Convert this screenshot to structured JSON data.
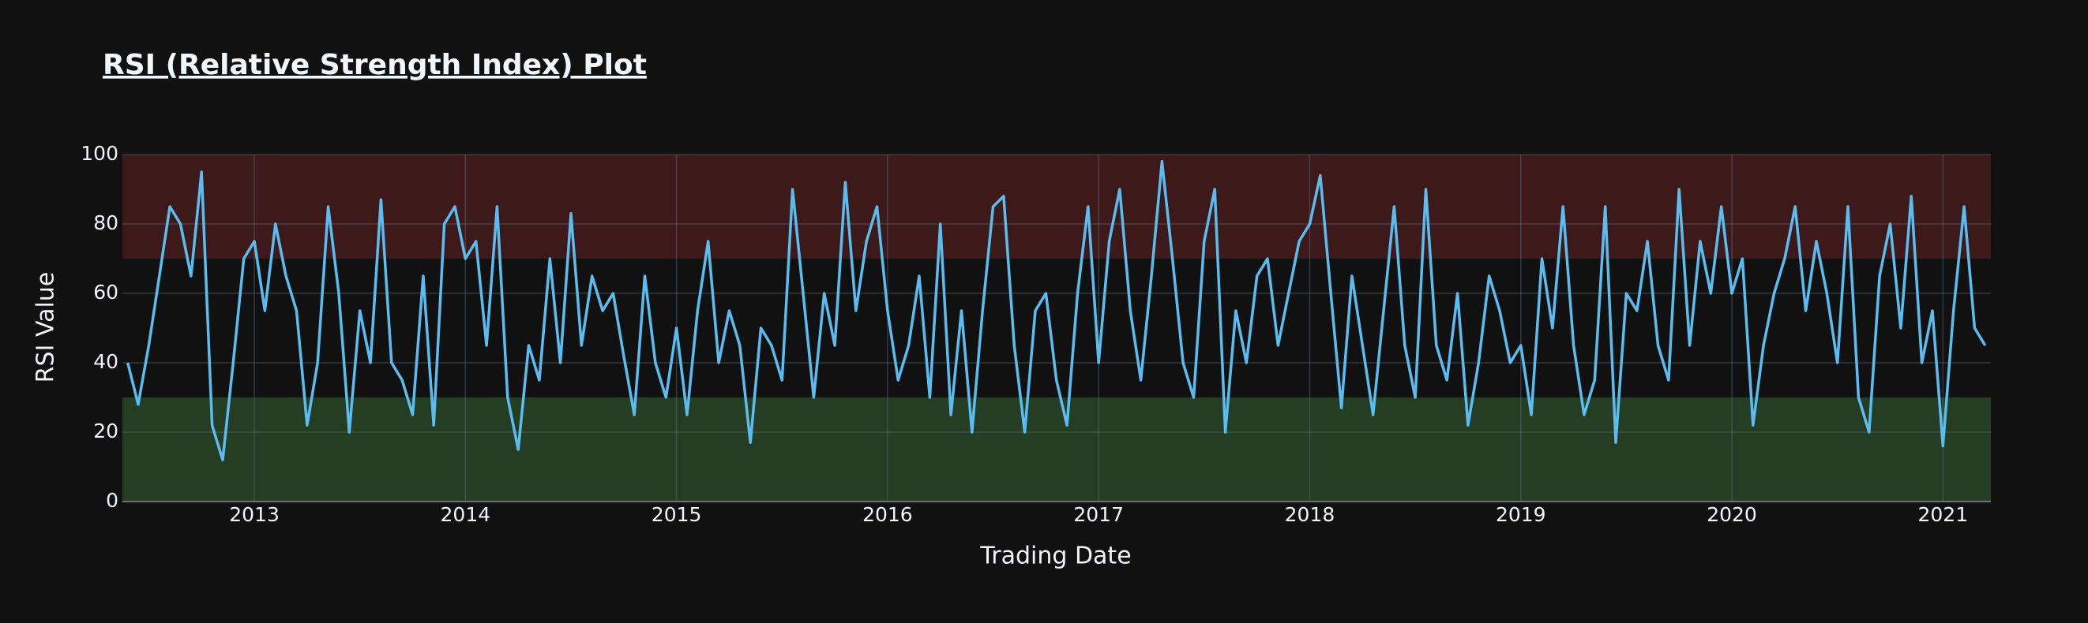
{
  "chart_data": {
    "type": "line",
    "title": "RSI (Relative Strength Index) Plot",
    "x_label": "Trading Date",
    "y_label": "RSI Value",
    "color": "#5bbcf0",
    "background": "#111111",
    "grid": true,
    "xlim": [
      2012.375,
      2021.227
    ],
    "xticks": [
      2013,
      2014,
      2015,
      2016,
      2017,
      2018,
      2019,
      2020,
      2021
    ],
    "ylim": [
      0,
      100
    ],
    "yticks": [
      0,
      20,
      40,
      60,
      80,
      100
    ],
    "bands": [
      {
        "range": [
          70,
          100
        ],
        "color": "#3d1a19"
      },
      {
        "range": [
          0,
          30
        ],
        "color": "#253d22"
      }
    ],
    "x": [
      2012.4,
      2012.45,
      2012.5,
      2012.55,
      2012.6,
      2012.65,
      2012.7,
      2012.75,
      2012.8,
      2012.85,
      2012.9,
      2012.95,
      2013.0,
      2013.05,
      2013.1,
      2013.15,
      2013.2,
      2013.25,
      2013.3,
      2013.35,
      2013.4,
      2013.45,
      2013.5,
      2013.55,
      2013.6,
      2013.65,
      2013.7,
      2013.75,
      2013.8,
      2013.85,
      2013.9,
      2013.95,
      2014.0,
      2014.05,
      2014.1,
      2014.15,
      2014.2,
      2014.25,
      2014.3,
      2014.35,
      2014.4,
      2014.45,
      2014.5,
      2014.55,
      2014.6,
      2014.65,
      2014.7,
      2014.75,
      2014.8,
      2014.85,
      2014.9,
      2014.95,
      2015.0,
      2015.05,
      2015.1,
      2015.15,
      2015.2,
      2015.25,
      2015.3,
      2015.35,
      2015.4,
      2015.45,
      2015.5,
      2015.55,
      2015.6,
      2015.65,
      2015.7,
      2015.75,
      2015.8,
      2015.85,
      2015.9,
      2015.95,
      2016.0,
      2016.05,
      2016.1,
      2016.15,
      2016.2,
      2016.25,
      2016.3,
      2016.35,
      2016.4,
      2016.45,
      2016.5,
      2016.55,
      2016.6,
      2016.65,
      2016.7,
      2016.75,
      2016.8,
      2016.85,
      2016.9,
      2016.95,
      2017.0,
      2017.05,
      2017.1,
      2017.15,
      2017.2,
      2017.25,
      2017.3,
      2017.35,
      2017.4,
      2017.45,
      2017.5,
      2017.55,
      2017.6,
      2017.65,
      2017.7,
      2017.75,
      2017.8,
      2017.85,
      2017.9,
      2017.95,
      2018.0,
      2018.05,
      2018.1,
      2018.15,
      2018.2,
      2018.25,
      2018.3,
      2018.35,
      2018.4,
      2018.45,
      2018.5,
      2018.55,
      2018.6,
      2018.65,
      2018.7,
      2018.75,
      2018.8,
      2018.85,
      2018.9,
      2018.95,
      2019.0,
      2019.05,
      2019.1,
      2019.15,
      2019.2,
      2019.25,
      2019.3,
      2019.35,
      2019.4,
      2019.45,
      2019.5,
      2019.55,
      2019.6,
      2019.65,
      2019.7,
      2019.75,
      2019.8,
      2019.85,
      2019.9,
      2019.95,
      2020.0,
      2020.05,
      2020.1,
      2020.15,
      2020.2,
      2020.25,
      2020.3,
      2020.35,
      2020.4,
      2020.45,
      2020.5,
      2020.55,
      2020.6,
      2020.65,
      2020.7,
      2020.75,
      2020.8,
      2020.85,
      2020.9,
      2020.95,
      2021.0,
      2021.05,
      2021.1,
      2021.15,
      2021.2
    ],
    "values": [
      40,
      28,
      45,
      65,
      85,
      80,
      65,
      95,
      22,
      12,
      40,
      70,
      75,
      55,
      80,
      65,
      55,
      22,
      40,
      85,
      60,
      20,
      55,
      40,
      87,
      40,
      35,
      25,
      65,
      22,
      80,
      85,
      70,
      75,
      45,
      85,
      30,
      15,
      45,
      35,
      70,
      40,
      83,
      45,
      65,
      55,
      60,
      42,
      25,
      65,
      40,
      30,
      50,
      25,
      55,
      75,
      40,
      55,
      45,
      17,
      50,
      45,
      35,
      90,
      60,
      30,
      60,
      45,
      92,
      55,
      75,
      85,
      55,
      35,
      45,
      65,
      30,
      80,
      25,
      55,
      20,
      55,
      85,
      88,
      45,
      20,
      55,
      60,
      35,
      22,
      60,
      85,
      40,
      75,
      90,
      55,
      35,
      65,
      98,
      70,
      40,
      30,
      75,
      90,
      20,
      55,
      40,
      65,
      70,
      45,
      60,
      75,
      80,
      94,
      60,
      27,
      65,
      45,
      25,
      55,
      85,
      45,
      30,
      90,
      45,
      35,
      60,
      22,
      40,
      65,
      55,
      40,
      45,
      25,
      70,
      50,
      85,
      45,
      25,
      35,
      85,
      17,
      60,
      55,
      75,
      45,
      35,
      90,
      45,
      75,
      60,
      85,
      60,
      70,
      22,
      45,
      60,
      70,
      85,
      55,
      75,
      60,
      40,
      85,
      30,
      20,
      65,
      80,
      50,
      88,
      40,
      55,
      16,
      55,
      85,
      50,
      45
    ]
  }
}
